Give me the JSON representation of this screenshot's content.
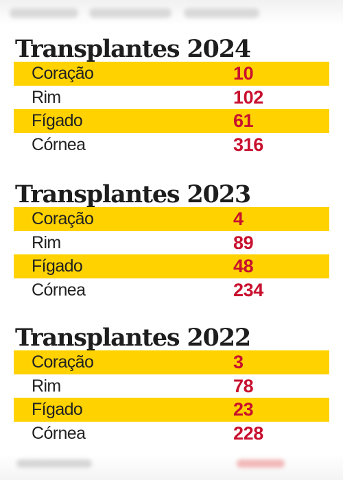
{
  "sections": [
    {
      "title": "Transplantes 2024",
      "rows": [
        {
          "label": "Coração",
          "value": "10"
        },
        {
          "label": "Rim",
          "value": "102"
        },
        {
          "label": "Fígado",
          "value": "61"
        },
        {
          "label": "Córnea",
          "value": "316"
        }
      ]
    },
    {
      "title": "Transplantes 2023",
      "rows": [
        {
          "label": "Coração",
          "value": "4"
        },
        {
          "label": "Rim",
          "value": "89"
        },
        {
          "label": "Fígado",
          "value": "48"
        },
        {
          "label": "Córnea",
          "value": "234"
        }
      ]
    },
    {
      "title": "Transplantes 2022",
      "rows": [
        {
          "label": "Coração",
          "value": "3"
        },
        {
          "label": "Rim",
          "value": "78"
        },
        {
          "label": "Fígado",
          "value": "23"
        },
        {
          "label": "Córnea",
          "value": "228"
        }
      ]
    }
  ],
  "colors": {
    "highlight_row": "#ffd200",
    "value_text": "#c8102e",
    "title_text": "#1e1e1e",
    "label_text": "#222222"
  }
}
